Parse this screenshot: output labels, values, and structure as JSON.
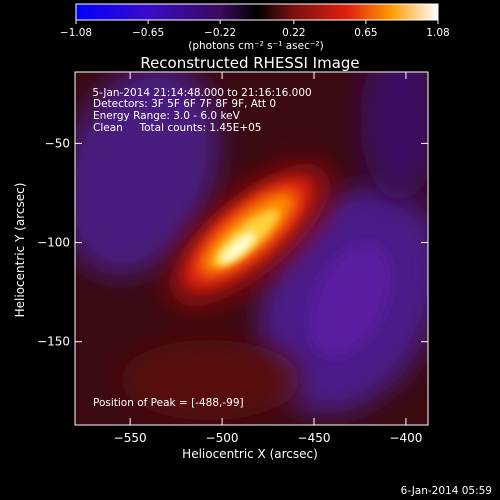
{
  "chart_data": {
    "type": "heatmap",
    "title": "Reconstructed RHESSI Image",
    "xlabel": "Heliocentric X (arcsec)",
    "ylabel": "Heliocentric Y (arcsec)",
    "xlim": [
      -580,
      -388
    ],
    "ylim": [
      -192,
      -14
    ],
    "xticks": [
      -550,
      -500,
      -450,
      -400
    ],
    "yticks": [
      -50,
      -100,
      -150
    ],
    "xtick_labels": [
      "−550",
      "−500",
      "−450",
      "−400"
    ],
    "ytick_labels": [
      "−50",
      "−100",
      "−150"
    ],
    "colorbar": {
      "min": -1.08,
      "max": 1.08,
      "ticks": [
        -1.08,
        -0.65,
        -0.22,
        0.22,
        0.65,
        1.08
      ],
      "tick_labels": [
        "−1.08",
        "−0.65",
        "−0.22",
        "0.22",
        "0.65",
        "1.08"
      ],
      "unit": "(photons cm⁻² s⁻¹ asec⁻²)"
    },
    "peak": {
      "x": -488,
      "y": -99
    },
    "annotations": [
      " 5-Jan-2014 21:14:48.000 to 21:16:16.000",
      "Detectors: 3F 5F 6F 7F 8F 9F, Att 0",
      "Energy Range: 3.0 - 6.0 keV",
      "Clean     Total counts: 1.45E+05"
    ],
    "peak_label": "Position of Peak = [-488,-99]"
  },
  "footer": "6-Jan-2014 05:59"
}
